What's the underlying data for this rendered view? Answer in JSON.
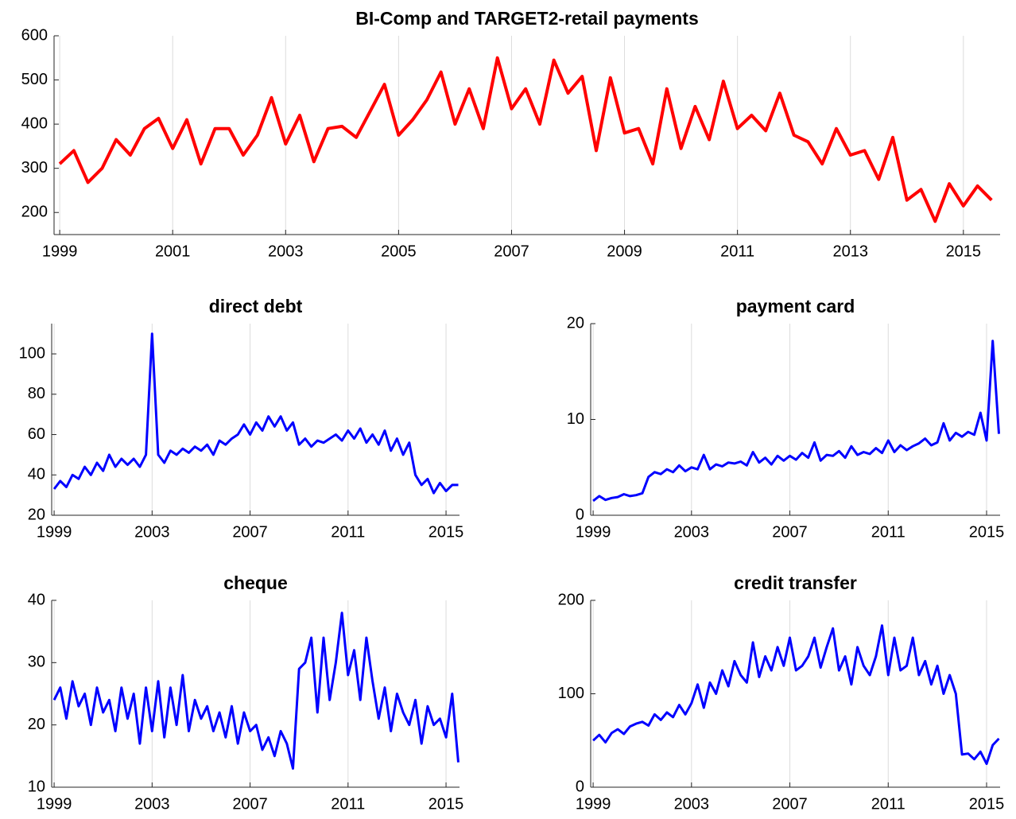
{
  "chart_data": [
    {
      "type": "line",
      "title": "BI-Comp and TARGET2-retail payments",
      "color": "#ff0000",
      "grid": true,
      "x": [
        1999,
        1999.25,
        1999.5,
        1999.75,
        2000,
        2000.25,
        2000.5,
        2000.75,
        2001,
        2001.25,
        2001.5,
        2001.75,
        2002,
        2002.25,
        2002.5,
        2002.75,
        2003,
        2003.25,
        2003.5,
        2003.75,
        2004,
        2004.25,
        2004.5,
        2004.75,
        2005,
        2005.25,
        2005.5,
        2005.75,
        2006,
        2006.25,
        2006.5,
        2006.75,
        2007,
        2007.25,
        2007.5,
        2007.75,
        2008,
        2008.25,
        2008.5,
        2008.75,
        2009,
        2009.25,
        2009.5,
        2009.75,
        2010,
        2010.25,
        2010.5,
        2010.75,
        2011,
        2011.25,
        2011.5,
        2011.75,
        2012,
        2012.25,
        2012.5,
        2012.75,
        2013,
        2013.25,
        2013.5,
        2013.75,
        2014,
        2014.25,
        2014.5,
        2014.75,
        2015,
        2015.25,
        2015.5
      ],
      "values": [
        310,
        340,
        268,
        300,
        365,
        330,
        390,
        413,
        345,
        410,
        310,
        390,
        390,
        330,
        375,
        460,
        355,
        420,
        315,
        390,
        395,
        370,
        430,
        490,
        375,
        410,
        455,
        518,
        400,
        480,
        390,
        550,
        435,
        480,
        400,
        545,
        470,
        508,
        340,
        505,
        380,
        390,
        310,
        480,
        345,
        440,
        365,
        497,
        390,
        420,
        385,
        470,
        375,
        360,
        310,
        390,
        330,
        340,
        275,
        370,
        228,
        252,
        180,
        265,
        215,
        260,
        228
      ],
      "xlim": [
        1998.9,
        2015.65
      ],
      "xticks": [
        1999,
        2001,
        2003,
        2005,
        2007,
        2009,
        2011,
        2013,
        2015
      ],
      "ylim": [
        150,
        600
      ],
      "yticks": [
        200,
        300,
        400,
        500,
        600
      ]
    },
    {
      "type": "line",
      "title": "direct debt",
      "color": "#0000ff",
      "grid": true,
      "x": [
        1999,
        1999.25,
        1999.5,
        1999.75,
        2000,
        2000.25,
        2000.5,
        2000.75,
        2001,
        2001.25,
        2001.5,
        2001.75,
        2002,
        2002.25,
        2002.5,
        2002.75,
        2003,
        2003.25,
        2003.5,
        2003.75,
        2004,
        2004.25,
        2004.5,
        2004.75,
        2005,
        2005.25,
        2005.5,
        2005.75,
        2006,
        2006.25,
        2006.5,
        2006.75,
        2007,
        2007.25,
        2007.5,
        2007.75,
        2008,
        2008.25,
        2008.5,
        2008.75,
        2009,
        2009.25,
        2009.5,
        2009.75,
        2010,
        2010.25,
        2010.5,
        2010.75,
        2011,
        2011.25,
        2011.5,
        2011.75,
        2012,
        2012.25,
        2012.5,
        2012.75,
        2013,
        2013.25,
        2013.5,
        2013.75,
        2014,
        2014.25,
        2014.5,
        2014.75,
        2015,
        2015.25,
        2015.5
      ],
      "values": [
        33,
        37,
        34,
        40,
        38,
        44,
        40,
        46,
        42,
        50,
        44,
        48,
        45,
        48,
        44,
        50,
        110,
        50,
        46,
        52,
        50,
        53,
        51,
        54,
        52,
        55,
        50,
        57,
        55,
        58,
        60,
        65,
        60,
        66,
        62,
        69,
        64,
        69,
        62,
        66,
        55,
        58,
        54,
        57,
        56,
        58,
        60,
        57,
        62,
        58,
        63,
        56,
        60,
        55,
        62,
        52,
        58,
        50,
        56,
        40,
        35,
        38,
        31,
        36,
        32,
        35,
        35
      ],
      "xlim": [
        1998.9,
        2015.55
      ],
      "xticks": [
        1999,
        2003,
        2007,
        2011,
        2015
      ],
      "ylim": [
        20,
        115
      ],
      "yticks": [
        20,
        40,
        60,
        80,
        100
      ]
    },
    {
      "type": "line",
      "title": "payment card",
      "color": "#0000ff",
      "grid": true,
      "x": [
        1999,
        1999.25,
        1999.5,
        1999.75,
        2000,
        2000.25,
        2000.5,
        2000.75,
        2001,
        2001.25,
        2001.5,
        2001.75,
        2002,
        2002.25,
        2002.5,
        2002.75,
        2003,
        2003.25,
        2003.5,
        2003.75,
        2004,
        2004.25,
        2004.5,
        2004.75,
        2005,
        2005.25,
        2005.5,
        2005.75,
        2006,
        2006.25,
        2006.5,
        2006.75,
        2007,
        2007.25,
        2007.5,
        2007.75,
        2008,
        2008.25,
        2008.5,
        2008.75,
        2009,
        2009.25,
        2009.5,
        2009.75,
        2010,
        2010.25,
        2010.5,
        2010.75,
        2011,
        2011.25,
        2011.5,
        2011.75,
        2012,
        2012.25,
        2012.5,
        2012.75,
        2013,
        2013.25,
        2013.5,
        2013.75,
        2014,
        2014.25,
        2014.5,
        2014.75,
        2015,
        2015.25,
        2015.5
      ],
      "values": [
        1.5,
        2.0,
        1.6,
        1.8,
        1.9,
        2.2,
        2.0,
        2.1,
        2.3,
        4.0,
        4.5,
        4.3,
        4.8,
        4.5,
        5.2,
        4.6,
        5.0,
        4.8,
        6.3,
        4.8,
        5.3,
        5.1,
        5.5,
        5.4,
        5.6,
        5.2,
        6.6,
        5.5,
        6.0,
        5.3,
        6.2,
        5.7,
        6.2,
        5.8,
        6.5,
        6.0,
        7.6,
        5.7,
        6.3,
        6.2,
        6.7,
        6.0,
        7.2,
        6.3,
        6.6,
        6.4,
        7.0,
        6.5,
        7.8,
        6.6,
        7.3,
        6.8,
        7.2,
        7.5,
        8.0,
        7.3,
        7.6,
        9.6,
        7.8,
        8.6,
        8.2,
        8.7,
        8.4,
        10.7,
        7.8,
        18.2,
        8.5
      ],
      "xlim": [
        1998.9,
        2015.55
      ],
      "xticks": [
        1999,
        2003,
        2007,
        2011,
        2015
      ],
      "ylim": [
        0,
        20
      ],
      "yticks": [
        0,
        10,
        20
      ]
    },
    {
      "type": "line",
      "title": "cheque",
      "color": "#0000ff",
      "grid": true,
      "x": [
        1999,
        1999.25,
        1999.5,
        1999.75,
        2000,
        2000.25,
        2000.5,
        2000.75,
        2001,
        2001.25,
        2001.5,
        2001.75,
        2002,
        2002.25,
        2002.5,
        2002.75,
        2003,
        2003.25,
        2003.5,
        2003.75,
        2004,
        2004.25,
        2004.5,
        2004.75,
        2005,
        2005.25,
        2005.5,
        2005.75,
        2006,
        2006.25,
        2006.5,
        2006.75,
        2007,
        2007.25,
        2007.5,
        2007.75,
        2008,
        2008.25,
        2008.5,
        2008.75,
        2009,
        2009.25,
        2009.5,
        2009.75,
        2010,
        2010.25,
        2010.5,
        2010.75,
        2011,
        2011.25,
        2011.5,
        2011.75,
        2012,
        2012.25,
        2012.5,
        2012.75,
        2013,
        2013.25,
        2013.5,
        2013.75,
        2014,
        2014.25,
        2014.5,
        2014.75,
        2015,
        2015.25,
        2015.5
      ],
      "values": [
        24,
        26,
        21,
        27,
        23,
        25,
        20,
        26,
        22,
        24,
        19,
        26,
        21,
        25,
        17,
        26,
        19,
        27,
        18,
        26,
        20,
        28,
        19,
        24,
        21,
        23,
        19,
        22,
        18,
        23,
        17,
        22,
        19,
        20,
        16,
        18,
        15,
        19,
        17,
        13,
        29,
        30,
        34,
        22,
        34,
        24,
        30,
        38,
        28,
        32,
        24,
        34,
        27,
        21,
        26,
        19,
        25,
        22,
        20,
        24,
        17,
        23,
        20,
        21,
        18,
        25,
        14
      ],
      "xlim": [
        1998.9,
        2015.55
      ],
      "xticks": [
        1999,
        2003,
        2007,
        2011,
        2015
      ],
      "ylim": [
        10,
        40
      ],
      "yticks": [
        10,
        20,
        30,
        40
      ]
    },
    {
      "type": "line",
      "title": "credit transfer",
      "color": "#0000ff",
      "grid": true,
      "x": [
        1999,
        1999.25,
        1999.5,
        1999.75,
        2000,
        2000.25,
        2000.5,
        2000.75,
        2001,
        2001.25,
        2001.5,
        2001.75,
        2002,
        2002.25,
        2002.5,
        2002.75,
        2003,
        2003.25,
        2003.5,
        2003.75,
        2004,
        2004.25,
        2004.5,
        2004.75,
        2005,
        2005.25,
        2005.5,
        2005.75,
        2006,
        2006.25,
        2006.5,
        2006.75,
        2007,
        2007.25,
        2007.5,
        2007.75,
        2008,
        2008.25,
        2008.5,
        2008.75,
        2009,
        2009.25,
        2009.5,
        2009.75,
        2010,
        2010.25,
        2010.5,
        2010.75,
        2011,
        2011.25,
        2011.5,
        2011.75,
        2012,
        2012.25,
        2012.5,
        2012.75,
        2013,
        2013.25,
        2013.5,
        2013.75,
        2014,
        2014.25,
        2014.5,
        2014.75,
        2015,
        2015.25,
        2015.5
      ],
      "values": [
        50,
        56,
        48,
        58,
        62,
        57,
        65,
        68,
        70,
        66,
        78,
        72,
        80,
        75,
        88,
        78,
        90,
        110,
        85,
        112,
        100,
        125,
        108,
        135,
        120,
        112,
        155,
        118,
        140,
        125,
        150,
        130,
        160,
        125,
        130,
        140,
        160,
        128,
        150,
        170,
        125,
        140,
        110,
        150,
        130,
        120,
        140,
        173,
        120,
        160,
        125,
        130,
        160,
        120,
        135,
        110,
        130,
        100,
        120,
        100,
        35,
        36,
        30,
        38,
        25,
        45,
        52
      ],
      "xlim": [
        1998.9,
        2015.55
      ],
      "xticks": [
        1999,
        2003,
        2007,
        2011,
        2015
      ],
      "ylim": [
        0,
        200
      ],
      "yticks": [
        0,
        100,
        200
      ]
    }
  ]
}
